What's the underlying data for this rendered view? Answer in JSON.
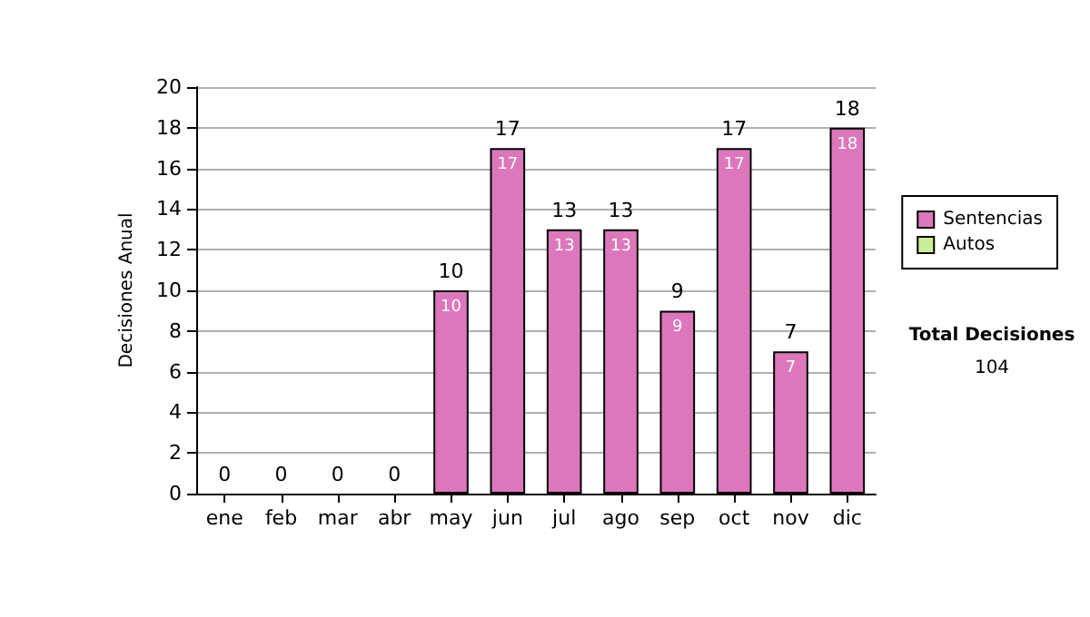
{
  "chart_data": {
    "type": "bar",
    "ylabel": "Decisiones Anual",
    "categories": [
      "ene",
      "feb",
      "mar",
      "abr",
      "may",
      "jun",
      "jul",
      "ago",
      "sep",
      "oct",
      "nov",
      "dic"
    ],
    "series": [
      {
        "name": "Sentencias",
        "color": "#dd77bb",
        "values": [
          0,
          0,
          0,
          0,
          10,
          17,
          13,
          13,
          9,
          17,
          7,
          18
        ],
        "value_labels": [
          null,
          null,
          null,
          null,
          "10",
          "17",
          "13",
          "13",
          "9",
          "17",
          "7",
          "18"
        ]
      },
      {
        "name": "Autos",
        "color": "#ccee99",
        "values": [
          0,
          0,
          0,
          0,
          0,
          0,
          0,
          0,
          0,
          0,
          0,
          0
        ]
      }
    ],
    "stacked": true,
    "totals": [
      "0",
      "0",
      "0",
      "0",
      "10",
      "17",
      "13",
      "13",
      "9",
      "17",
      "7",
      "18"
    ],
    "ylim": [
      0,
      20
    ],
    "yticks": [
      0,
      2,
      4,
      6,
      8,
      10,
      12,
      14,
      16,
      18,
      20
    ],
    "grid": "y",
    "legend": "right",
    "annotations": [
      "Total Decisiones",
      "104"
    ]
  }
}
